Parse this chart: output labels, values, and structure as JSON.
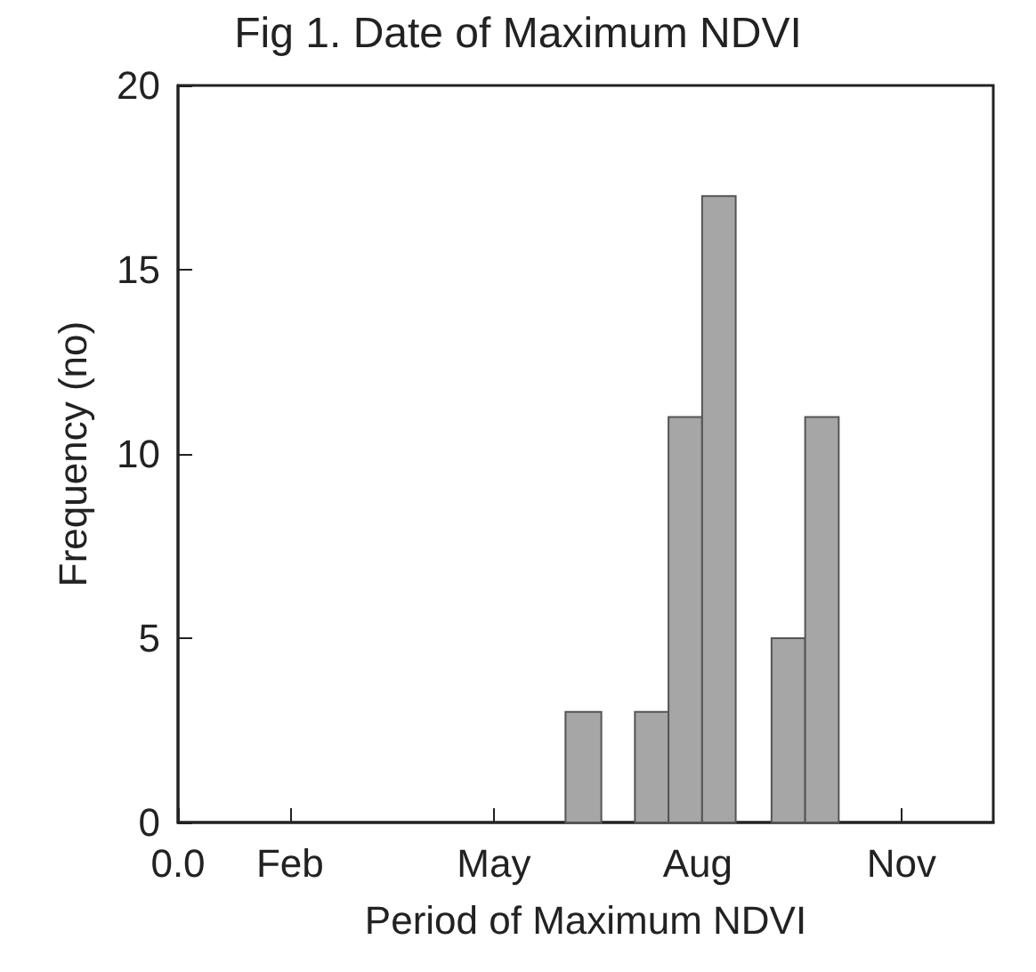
{
  "chart_data": {
    "type": "histogram",
    "title": "Fig 1. Date of Maximum NDVI",
    "xlabel": "Period of Maximum NDVI",
    "ylabel": "Frequency (no)",
    "bins": [
      "--06-23",
      "--07-09",
      "--07-24",
      "--08-08",
      "--08-23",
      "--09-07",
      "--09-23",
      "--10-08",
      "--10-23"
    ],
    "values": [
      3,
      0,
      3,
      11,
      17,
      0,
      5,
      11
    ],
    "color": "#a6a6a6",
    "xlim": [
      "--01-01",
      "--12-31"
    ],
    "xticks": [
      {
        "value": "--01-01",
        "label": "0.0"
      },
      {
        "value": "--02-20",
        "label": "Feb"
      },
      {
        "value": "--05-22",
        "label": "May"
      },
      {
        "value": "--08-21",
        "label": "Aug"
      },
      {
        "value": "--11-20",
        "label": "Nov"
      }
    ],
    "ylim": [
      0,
      20
    ],
    "yticks": [
      0,
      5,
      10,
      15,
      20
    ],
    "grid": false
  }
}
